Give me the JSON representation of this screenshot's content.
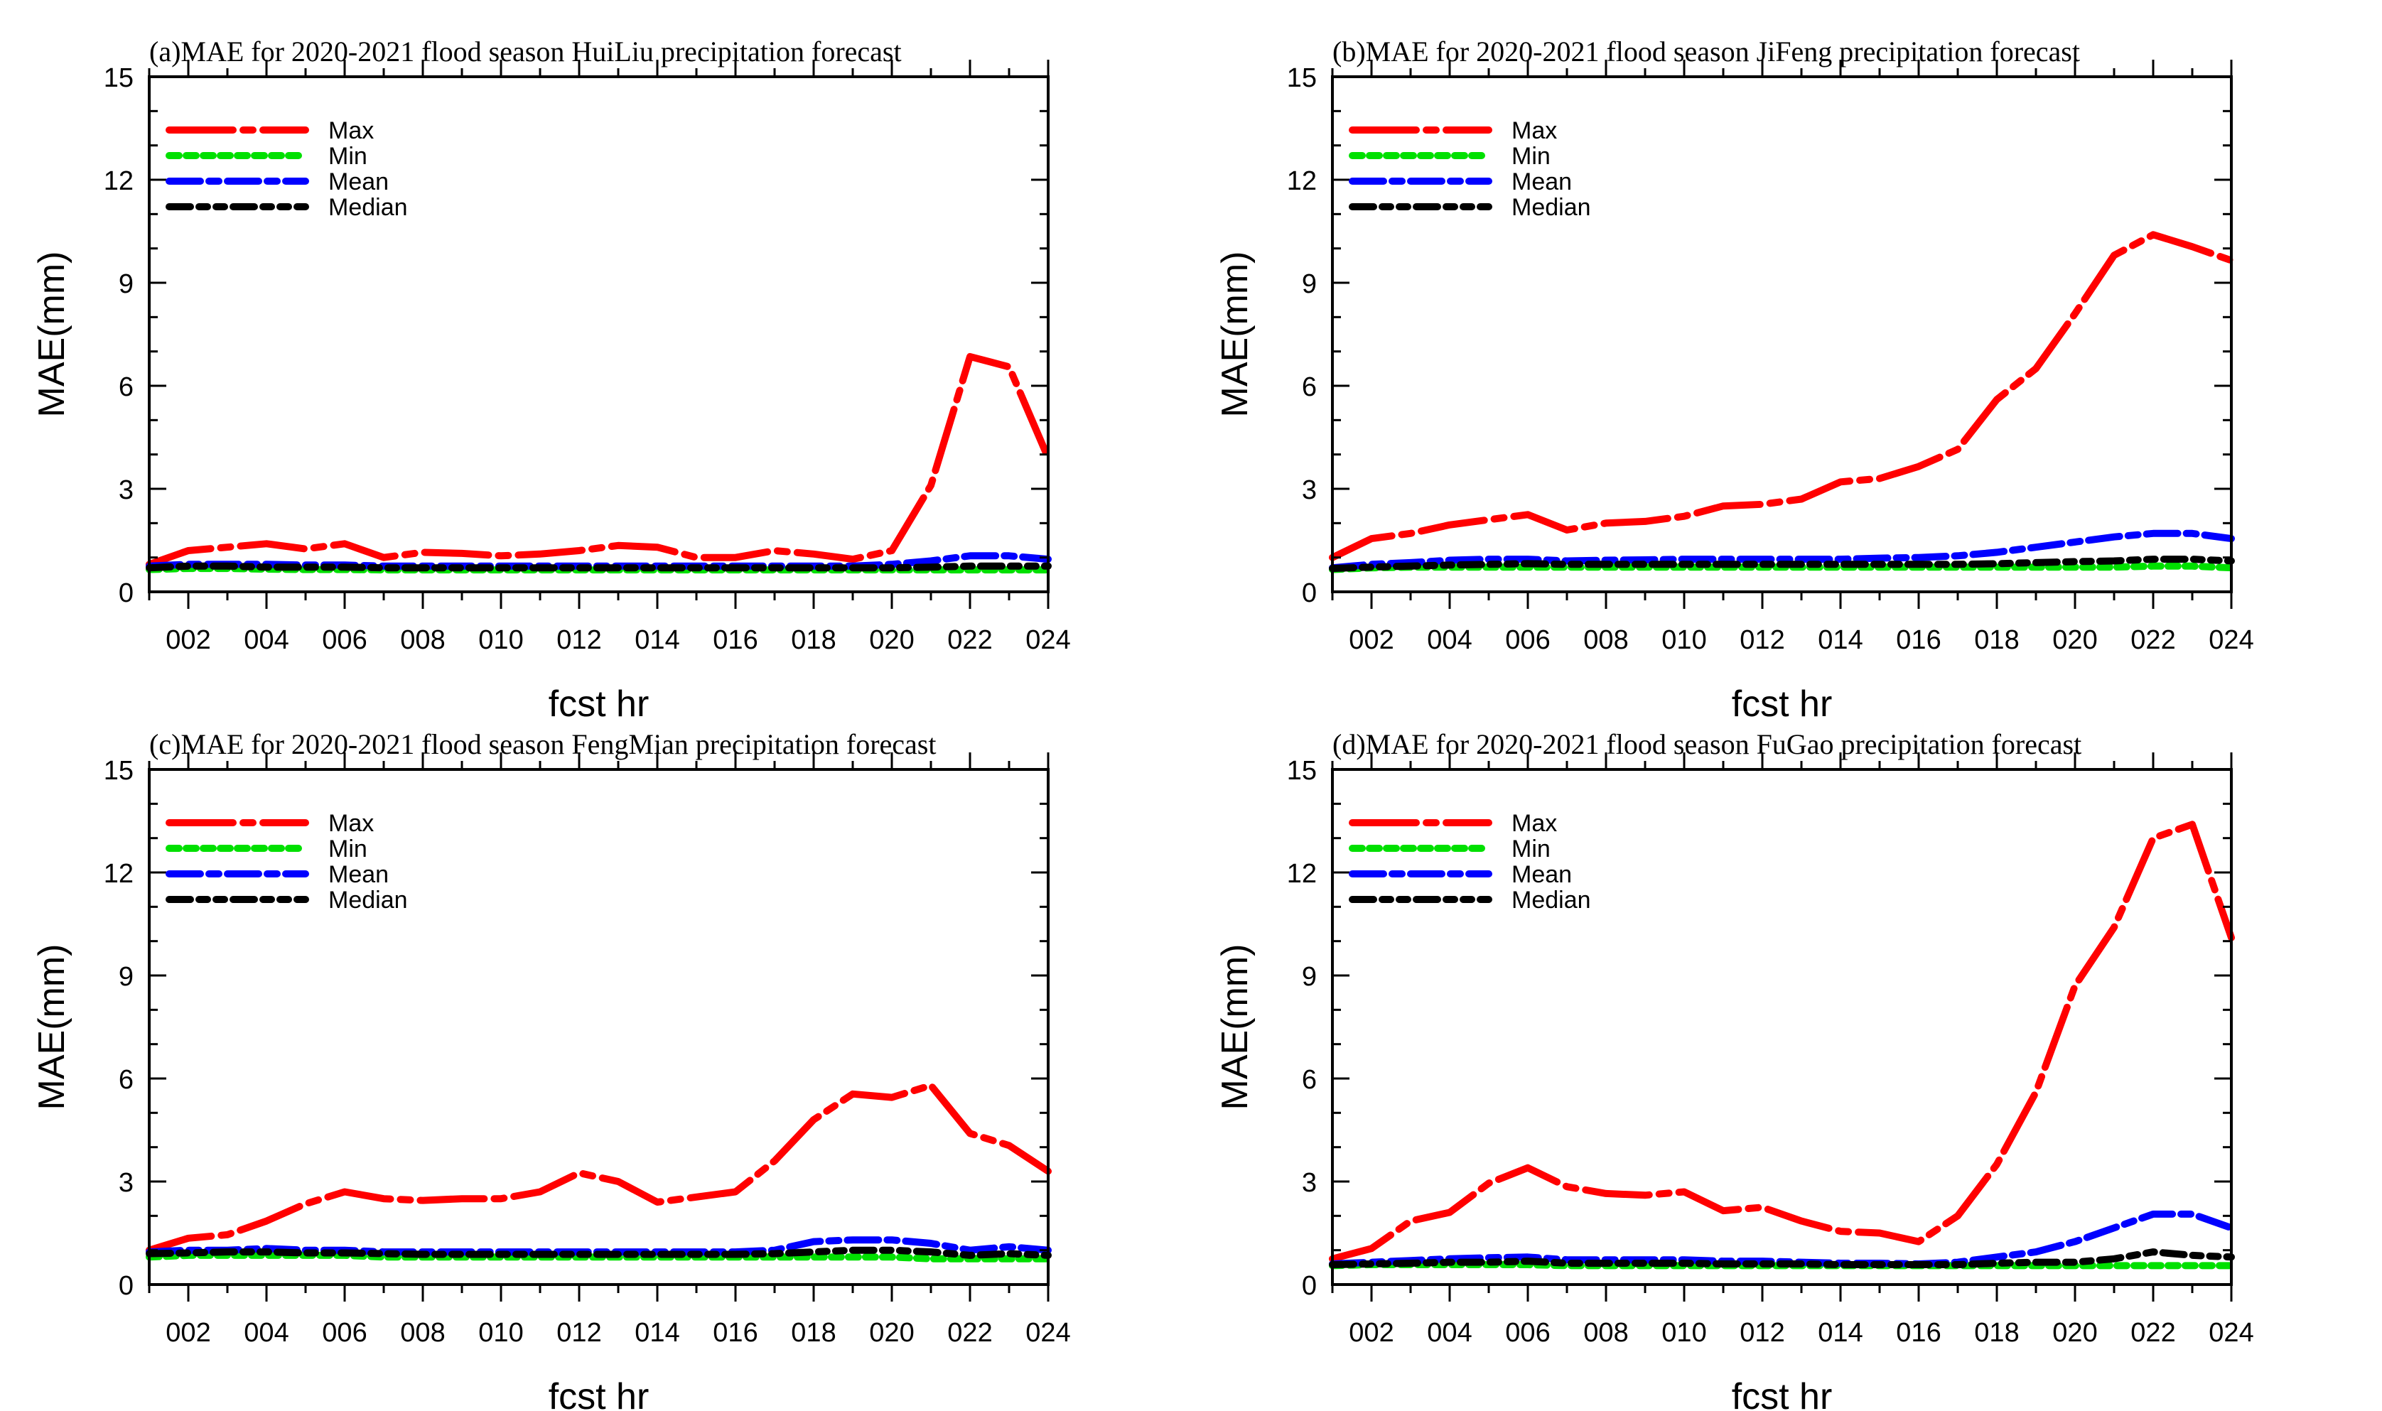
{
  "figure": {
    "name": "MAE flood season precipitation forecast panels"
  },
  "colors": {
    "Max": "#ff0000",
    "Min": "#00e000",
    "Mean": "#0000ff",
    "Median": "#000000"
  },
  "chart_data": [
    {
      "type": "line",
      "title": "(a)MAE for 2020-2021 flood season HuiLiu precipitation forecast",
      "xlabel": "fcst hr",
      "ylabel": "MAE(mm)",
      "ylim": [
        0,
        15
      ],
      "xlim": [
        1,
        24
      ],
      "x": [
        1,
        2,
        3,
        4,
        5,
        6,
        7,
        8,
        9,
        10,
        11,
        12,
        13,
        14,
        15,
        16,
        17,
        18,
        19,
        20,
        21,
        22,
        23,
        24
      ],
      "xticks": [
        2,
        4,
        6,
        8,
        10,
        12,
        14,
        16,
        18,
        20,
        22,
        24
      ],
      "xtick_labels": [
        "002",
        "004",
        "006",
        "008",
        "010",
        "012",
        "014",
        "016",
        "018",
        "020",
        "022",
        "024"
      ],
      "yticks": [
        0,
        3,
        6,
        9,
        12,
        15
      ],
      "ytick_labels": [
        "0",
        "3",
        "6",
        "9",
        "12",
        "15"
      ],
      "legend": [
        "Max",
        "Min",
        "Mean",
        "Median"
      ],
      "series": [
        {
          "name": "Max",
          "values": [
            0.8,
            1.2,
            1.3,
            1.4,
            1.25,
            1.4,
            1.0,
            1.15,
            1.12,
            1.05,
            1.1,
            1.2,
            1.35,
            1.3,
            1.0,
            1.0,
            1.2,
            1.1,
            0.95,
            1.2,
            3.1,
            6.85,
            6.55,
            3.9
          ]
        },
        {
          "name": "Min",
          "values": [
            0.65,
            0.68,
            0.68,
            0.66,
            0.65,
            0.65,
            0.64,
            0.64,
            0.64,
            0.64,
            0.64,
            0.64,
            0.64,
            0.64,
            0.64,
            0.64,
            0.64,
            0.64,
            0.64,
            0.64,
            0.64,
            0.64,
            0.64,
            0.64
          ]
        },
        {
          "name": "Mean",
          "values": [
            0.75,
            0.8,
            0.8,
            0.8,
            0.78,
            0.78,
            0.75,
            0.75,
            0.75,
            0.75,
            0.75,
            0.75,
            0.75,
            0.75,
            0.75,
            0.75,
            0.75,
            0.75,
            0.75,
            0.8,
            0.9,
            1.05,
            1.05,
            0.95
          ]
        },
        {
          "name": "Median",
          "values": [
            0.7,
            0.75,
            0.75,
            0.72,
            0.72,
            0.72,
            0.7,
            0.7,
            0.7,
            0.7,
            0.7,
            0.7,
            0.7,
            0.7,
            0.7,
            0.7,
            0.7,
            0.7,
            0.7,
            0.7,
            0.72,
            0.75,
            0.75,
            0.75
          ]
        }
      ]
    },
    {
      "type": "line",
      "title": "(b)MAE for 2020-2021 flood season JiFeng precipitation forecast",
      "xlabel": "fcst hr",
      "ylabel": "MAE(mm)",
      "ylim": [
        0,
        15
      ],
      "xlim": [
        1,
        24
      ],
      "x": [
        1,
        2,
        3,
        4,
        5,
        6,
        7,
        8,
        9,
        10,
        11,
        12,
        13,
        14,
        15,
        16,
        17,
        18,
        19,
        20,
        21,
        22,
        23,
        24
      ],
      "xticks": [
        2,
        4,
        6,
        8,
        10,
        12,
        14,
        16,
        18,
        20,
        22,
        24
      ],
      "xtick_labels": [
        "002",
        "004",
        "006",
        "008",
        "010",
        "012",
        "014",
        "016",
        "018",
        "020",
        "022",
        "024"
      ],
      "yticks": [
        0,
        3,
        6,
        9,
        12,
        15
      ],
      "ytick_labels": [
        "0",
        "3",
        "6",
        "9",
        "12",
        "15"
      ],
      "legend": [
        "Max",
        "Min",
        "Mean",
        "Median"
      ],
      "series": [
        {
          "name": "Max",
          "values": [
            1.0,
            1.55,
            1.7,
            1.95,
            2.1,
            2.25,
            1.8,
            2.0,
            2.05,
            2.2,
            2.5,
            2.55,
            2.7,
            3.2,
            3.3,
            3.65,
            4.15,
            5.6,
            6.5,
            8.1,
            9.8,
            10.4,
            10.05,
            9.65
          ]
        },
        {
          "name": "Min",
          "values": [
            0.65,
            0.7,
            0.72,
            0.72,
            0.72,
            0.72,
            0.72,
            0.72,
            0.72,
            0.72,
            0.72,
            0.72,
            0.72,
            0.72,
            0.72,
            0.72,
            0.72,
            0.72,
            0.72,
            0.72,
            0.72,
            0.75,
            0.75,
            0.7
          ]
        },
        {
          "name": "Mean",
          "values": [
            0.7,
            0.8,
            0.85,
            0.92,
            0.95,
            0.95,
            0.9,
            0.92,
            0.93,
            0.95,
            0.95,
            0.95,
            0.95,
            0.95,
            0.98,
            1.0,
            1.05,
            1.15,
            1.3,
            1.45,
            1.6,
            1.7,
            1.7,
            1.55
          ]
        },
        {
          "name": "Median",
          "values": [
            0.68,
            0.72,
            0.75,
            0.78,
            0.8,
            0.82,
            0.8,
            0.8,
            0.8,
            0.8,
            0.8,
            0.8,
            0.8,
            0.8,
            0.8,
            0.8,
            0.8,
            0.82,
            0.85,
            0.88,
            0.9,
            0.95,
            0.95,
            0.9
          ]
        }
      ]
    },
    {
      "type": "line",
      "title": "(c)MAE for 2020-2021 flood season FengMian precipitation forecast",
      "xlabel": "fcst hr",
      "ylabel": "MAE(mm)",
      "ylim": [
        0,
        15
      ],
      "xlim": [
        1,
        24
      ],
      "x": [
        1,
        2,
        3,
        4,
        5,
        6,
        7,
        8,
        9,
        10,
        11,
        12,
        13,
        14,
        15,
        16,
        17,
        18,
        19,
        20,
        21,
        22,
        23,
        24
      ],
      "xticks": [
        2,
        4,
        6,
        8,
        10,
        12,
        14,
        16,
        18,
        20,
        22,
        24
      ],
      "xtick_labels": [
        "002",
        "004",
        "006",
        "008",
        "010",
        "012",
        "014",
        "016",
        "018",
        "020",
        "022",
        "024"
      ],
      "yticks": [
        0,
        3,
        6,
        9,
        12,
        15
      ],
      "ytick_labels": [
        "0",
        "3",
        "6",
        "9",
        "12",
        "15"
      ],
      "legend": [
        "Max",
        "Min",
        "Mean",
        "Median"
      ],
      "series": [
        {
          "name": "Max",
          "values": [
            1.0,
            1.35,
            1.45,
            1.85,
            2.35,
            2.7,
            2.5,
            2.45,
            2.5,
            2.5,
            2.7,
            3.25,
            3.0,
            2.4,
            2.55,
            2.7,
            3.6,
            4.8,
            5.55,
            5.45,
            5.8,
            4.4,
            4.05,
            3.3
          ]
        },
        {
          "name": "Min",
          "values": [
            0.8,
            0.85,
            0.85,
            0.85,
            0.85,
            0.85,
            0.8,
            0.8,
            0.8,
            0.8,
            0.8,
            0.8,
            0.8,
            0.8,
            0.8,
            0.8,
            0.8,
            0.8,
            0.8,
            0.8,
            0.75,
            0.75,
            0.75,
            0.75
          ]
        },
        {
          "name": "Mean",
          "values": [
            0.95,
            1.0,
            1.0,
            1.05,
            1.0,
            1.0,
            0.95,
            0.95,
            0.95,
            0.95,
            0.95,
            0.95,
            0.95,
            0.95,
            0.95,
            0.95,
            1.0,
            1.25,
            1.3,
            1.3,
            1.2,
            1.0,
            1.1,
            1.0
          ]
        },
        {
          "name": "Median",
          "values": [
            0.9,
            0.92,
            0.95,
            0.95,
            0.92,
            0.92,
            0.9,
            0.88,
            0.88,
            0.88,
            0.88,
            0.88,
            0.88,
            0.88,
            0.88,
            0.88,
            0.9,
            0.95,
            1.0,
            1.0,
            0.95,
            0.85,
            0.9,
            0.85
          ]
        }
      ]
    },
    {
      "type": "line",
      "title": "(d)MAE for 2020-2021 flood season FuGao precipitation forecast",
      "xlabel": "fcst hr",
      "ylabel": "MAE(mm)",
      "ylim": [
        0,
        15
      ],
      "xlim": [
        1,
        24
      ],
      "x": [
        1,
        2,
        3,
        4,
        5,
        6,
        7,
        8,
        9,
        10,
        11,
        12,
        13,
        14,
        15,
        16,
        17,
        18,
        19,
        20,
        21,
        22,
        23,
        24
      ],
      "xticks": [
        2,
        4,
        6,
        8,
        10,
        12,
        14,
        16,
        18,
        20,
        22,
        24
      ],
      "xtick_labels": [
        "002",
        "004",
        "006",
        "008",
        "010",
        "012",
        "014",
        "016",
        "018",
        "020",
        "022",
        "024"
      ],
      "yticks": [
        0,
        3,
        6,
        9,
        12,
        15
      ],
      "ytick_labels": [
        "0",
        "3",
        "6",
        "9",
        "12",
        "15"
      ],
      "legend": [
        "Max",
        "Min",
        "Mean",
        "Median"
      ],
      "series": [
        {
          "name": "Max",
          "values": [
            0.75,
            1.05,
            1.85,
            2.1,
            2.95,
            3.4,
            2.85,
            2.65,
            2.6,
            2.7,
            2.15,
            2.25,
            1.85,
            1.55,
            1.5,
            1.25,
            2.0,
            3.5,
            5.6,
            8.7,
            10.4,
            13.0,
            13.4,
            10.1
          ]
        },
        {
          "name": "Min",
          "values": [
            0.55,
            0.58,
            0.58,
            0.58,
            0.58,
            0.58,
            0.55,
            0.55,
            0.55,
            0.55,
            0.55,
            0.55,
            0.55,
            0.55,
            0.55,
            0.55,
            0.55,
            0.55,
            0.55,
            0.55,
            0.55,
            0.55,
            0.55,
            0.55
          ]
        },
        {
          "name": "Mean",
          "values": [
            0.6,
            0.65,
            0.7,
            0.75,
            0.78,
            0.8,
            0.72,
            0.72,
            0.72,
            0.72,
            0.68,
            0.68,
            0.65,
            0.62,
            0.62,
            0.6,
            0.65,
            0.8,
            0.95,
            1.25,
            1.65,
            2.05,
            2.05,
            1.65
          ]
        },
        {
          "name": "Median",
          "values": [
            0.58,
            0.6,
            0.62,
            0.65,
            0.65,
            0.68,
            0.62,
            0.62,
            0.62,
            0.62,
            0.6,
            0.6,
            0.6,
            0.58,
            0.58,
            0.58,
            0.58,
            0.62,
            0.65,
            0.65,
            0.75,
            0.95,
            0.85,
            0.8
          ]
        }
      ]
    }
  ]
}
